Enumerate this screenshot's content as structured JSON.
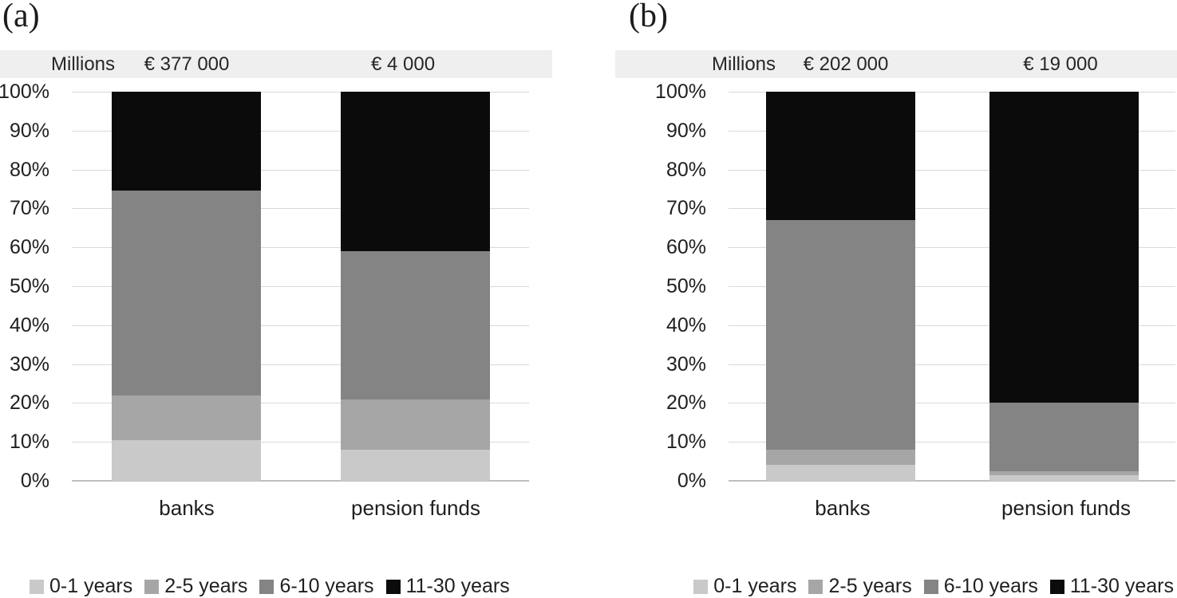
{
  "figure": {
    "description_colors": {
      "header_strip": "#efefef",
      "gridline": "#d9d9d9",
      "axis_baseline": "#bfbfbf"
    }
  },
  "chart_data": [
    {
      "type": "bar",
      "stacked": true,
      "percent_stacked": true,
      "panel_label": "(a)",
      "header_unit": "Millions",
      "column_totals": [
        "€ 377 000",
        "€ 4 000"
      ],
      "categories": [
        "banks",
        "pension funds"
      ],
      "series": [
        {
          "name": "0-1 years",
          "color": "#c9c9c9",
          "values": [
            10.5,
            8
          ]
        },
        {
          "name": "2-5 years",
          "color": "#a6a6a6",
          "values": [
            11.5,
            13
          ]
        },
        {
          "name": "6-10 years",
          "color": "#848484",
          "values": [
            52.5,
            38
          ]
        },
        {
          "name": "11-30 years",
          "color": "#0b0b0b",
          "values": [
            25.5,
            41
          ]
        }
      ],
      "y_ticks": [
        "100%",
        "90%",
        "80%",
        "70%",
        "60%",
        "50%",
        "40%",
        "30%",
        "20%",
        "10%",
        "0%"
      ],
      "ylim": [
        0,
        100
      ],
      "grid": true,
      "legend_position": "bottom"
    },
    {
      "type": "bar",
      "stacked": true,
      "percent_stacked": true,
      "panel_label": "(b)",
      "header_unit": "Millions",
      "column_totals": [
        "€ 202 000",
        "€ 19 000"
      ],
      "categories": [
        "banks",
        "pension funds"
      ],
      "series": [
        {
          "name": "0-1 years",
          "color": "#c9c9c9",
          "values": [
            4,
            1.5
          ]
        },
        {
          "name": "2-5 years",
          "color": "#a6a6a6",
          "values": [
            4,
            1
          ]
        },
        {
          "name": "6-10 years",
          "color": "#848484",
          "values": [
            59,
            17.5
          ]
        },
        {
          "name": "11-30 years",
          "color": "#0b0b0b",
          "values": [
            33,
            80
          ]
        }
      ],
      "y_ticks": [
        "100%",
        "90%",
        "80%",
        "70%",
        "60%",
        "50%",
        "40%",
        "30%",
        "20%",
        "10%",
        "0%"
      ],
      "ylim": [
        0,
        100
      ],
      "grid": true,
      "legend_position": "bottom"
    }
  ]
}
